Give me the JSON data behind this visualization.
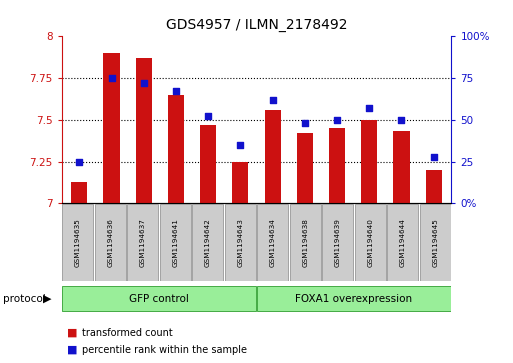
{
  "title": "GDS4957 / ILMN_2178492",
  "categories": [
    "GSM1194635",
    "GSM1194636",
    "GSM1194637",
    "GSM1194641",
    "GSM1194642",
    "GSM1194643",
    "GSM1194634",
    "GSM1194638",
    "GSM1194639",
    "GSM1194640",
    "GSM1194644",
    "GSM1194645"
  ],
  "red_values": [
    7.13,
    7.9,
    7.87,
    7.65,
    7.47,
    7.25,
    7.56,
    7.42,
    7.45,
    7.5,
    7.43,
    7.2
  ],
  "blue_values": [
    25,
    75,
    72,
    67,
    52,
    35,
    62,
    48,
    50,
    57,
    50,
    28
  ],
  "ylim_left": [
    7.0,
    8.0
  ],
  "ylim_right": [
    0,
    100
  ],
  "yticks_left": [
    7.0,
    7.25,
    7.5,
    7.75,
    8.0
  ],
  "yticks_right": [
    0,
    25,
    50,
    75,
    100
  ],
  "ytick_labels_left": [
    "7",
    "7.25",
    "7.5",
    "7.75",
    "8"
  ],
  "ytick_labels_right": [
    "0%",
    "25",
    "50",
    "75",
    "100%"
  ],
  "bar_color": "#cc1111",
  "dot_color": "#1111cc",
  "bar_width": 0.5,
  "group1_label": "GFP control",
  "group2_label": "FOXA1 overexpression",
  "group1_count": 6,
  "group2_count": 6,
  "protocol_label": "protocol",
  "legend_labels": [
    "transformed count",
    "percentile rank within the sample"
  ],
  "group_bg_color": "#99ee99",
  "label_area_color": "#cccccc",
  "plot_bg_color": "#ffffff",
  "title_fontsize": 10
}
